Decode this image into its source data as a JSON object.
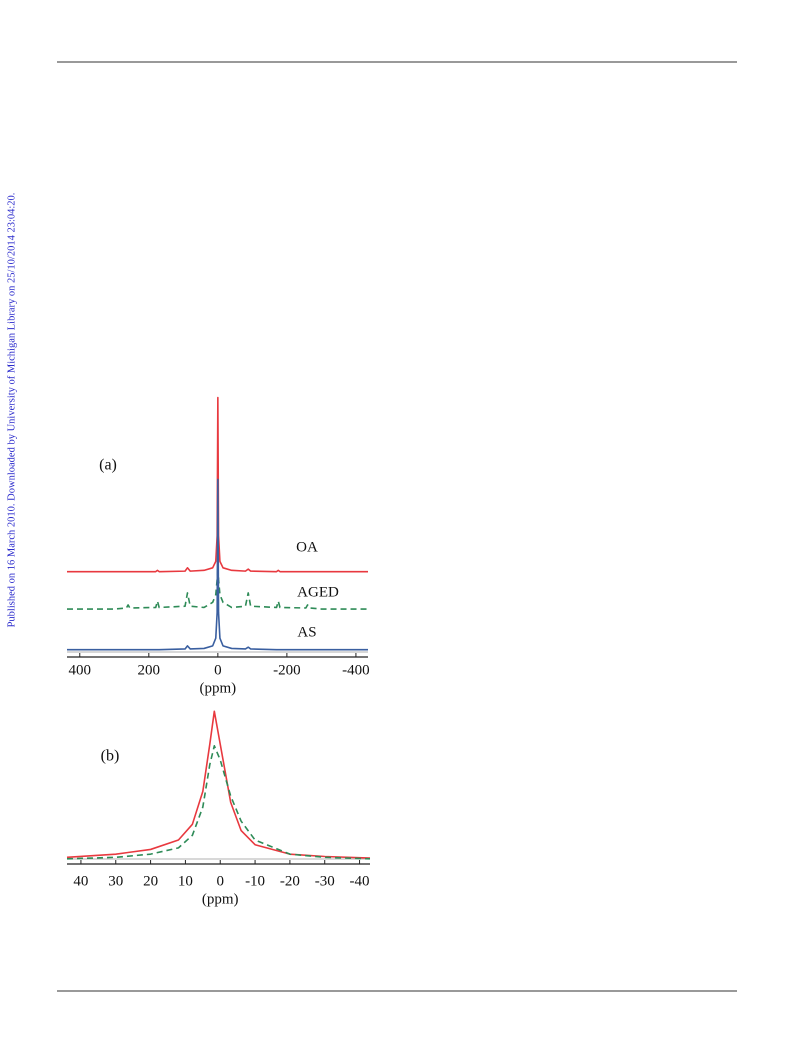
{
  "side_note": "Published on 16 March 2010. Downloaded by University of Michigan Library on 25/10/2014 23:04:20.",
  "chart_data": [
    {
      "type": "line",
      "label": "(a)",
      "x_label": "(ppm)",
      "xlim": [
        437,
        -435
      ],
      "ylim": [
        0,
        100
      ],
      "xticks": [
        400,
        200,
        0,
        -200,
        -400
      ],
      "x": [
        437,
        300,
        265,
        260,
        255,
        180,
        175,
        170,
        95,
        88,
        80,
        40,
        15,
        6,
        2,
        0,
        -2,
        -6,
        -15,
        -40,
        -80,
        -88,
        -95,
        -170,
        -175,
        -180,
        -255,
        -260,
        -265,
        -300,
        -435
      ],
      "series": [
        {
          "name": "OA",
          "color": "#e8393f",
          "style": "solid",
          "values": [
            31,
            31,
            31,
            31,
            31,
            31,
            31.5,
            31,
            31.2,
            32.5,
            31.2,
            31.5,
            32.5,
            35,
            45,
            99,
            45,
            35,
            32.5,
            31.5,
            31.2,
            32,
            31.2,
            31,
            31.5,
            31,
            31,
            31,
            31,
            31,
            31
          ]
        },
        {
          "name": "AGED",
          "color": "#2e8b57",
          "style": "dashed",
          "values": [
            16.4,
            16.4,
            16.8,
            18,
            16.8,
            17,
            19.5,
            17,
            17.5,
            22.7,
            17.5,
            17,
            19,
            22,
            28,
            33,
            28,
            22,
            19,
            17,
            17.5,
            22.7,
            17.5,
            17,
            19.5,
            17,
            16.8,
            18,
            16.8,
            16.4,
            16.4
          ]
        },
        {
          "name": "AS",
          "color": "#3a5fa0",
          "style": "solid",
          "values": [
            0.5,
            0.5,
            0.5,
            0.5,
            0.5,
            0.5,
            0.5,
            0.5,
            0.8,
            2,
            0.8,
            1,
            2,
            5,
            15,
            67,
            15,
            5,
            2,
            1,
            0.8,
            1.5,
            0.8,
            0.5,
            0.5,
            0.5,
            0.5,
            0.5,
            0.5,
            0.5,
            0.5
          ]
        }
      ]
    },
    {
      "type": "line",
      "label": "(b)",
      "x_label": "(ppm)",
      "xlim": [
        44,
        -43
      ],
      "ylim": [
        0,
        100
      ],
      "xticks": [
        40,
        30,
        20,
        10,
        0,
        -10,
        -20,
        -30,
        -40
      ],
      "x": [
        44,
        30,
        20,
        12,
        8,
        5,
        3,
        1.7,
        0,
        -3,
        -6,
        -10,
        -20,
        -30,
        -43
      ],
      "series": [
        {
          "color": "#e8393f",
          "style": "solid",
          "values": [
            3,
            5,
            8,
            14,
            24,
            45,
            75,
            96,
            75,
            38,
            20,
            11,
            5,
            3.5,
            2.5
          ]
        },
        {
          "color": "#2e8b57",
          "style": "dashed",
          "values": [
            2,
            3,
            5,
            9,
            17,
            35,
            62,
            74,
            65,
            42,
            26,
            14,
            5,
            3,
            2
          ]
        }
      ]
    }
  ]
}
